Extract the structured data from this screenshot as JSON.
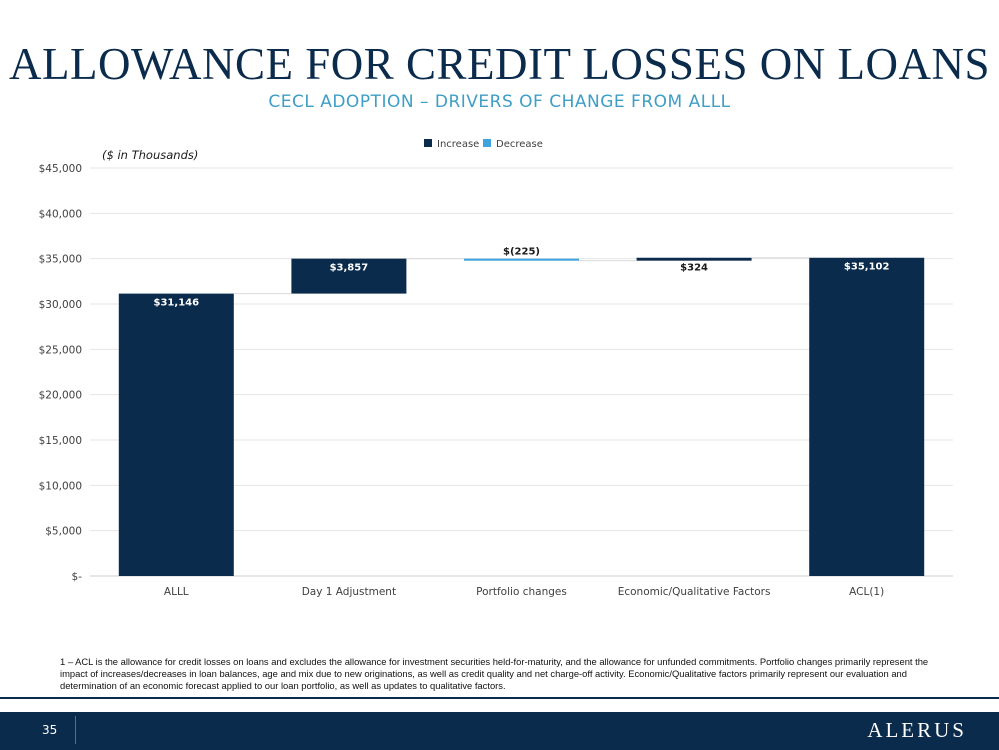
{
  "slide": {
    "title": "ALLOWANCE FOR CREDIT LOSSES ON LOANS",
    "subtitle": "CECL ADOPTION – DRIVERS OF CHANGE FROM ALLL",
    "footnote": "1 – ACL is the allowance for credit losses on loans and excludes the allowance for investment securities held-for-maturity, and the allowance for unfunded commitments. Portfolio changes primarily represent the impact of increases/decreases in loan balances, age and mix due to new originations, as well as credit quality and net charge-off activity. Economic/Qualitative factors primarily represent our evaluation and determination of an economic forecast applied to our loan portfolio, as well as updates to qualitative factors.",
    "page_number": "35",
    "logo_text": "ALERUS"
  },
  "chart_data": {
    "type": "bar",
    "subtype": "waterfall",
    "unit_note": "($ in Thousands)",
    "categories": [
      "ALLL",
      "Day 1 Adjustment",
      "Portfolio changes",
      "Economic/Qualitative Factors",
      "ACL(1)"
    ],
    "values": [
      31146,
      3857,
      -225,
      324,
      35102
    ],
    "bar_kinds": [
      "total",
      "increase",
      "decrease",
      "increase",
      "total"
    ],
    "data_labels": [
      "$31,146",
      "$3,857",
      "$(225)",
      "$324",
      "$35,102"
    ],
    "legend": [
      {
        "name": "Increase",
        "color": "#0b2b4c"
      },
      {
        "name": "Decrease",
        "color": "#3fa3e0"
      }
    ],
    "legend_position": "top",
    "ylim": [
      0,
      45000
    ],
    "yticks": [
      0,
      5000,
      10000,
      15000,
      20000,
      25000,
      30000,
      35000,
      40000,
      45000
    ],
    "ytick_labels": [
      "$-",
      "$5,000",
      "$10,000",
      "$15,000",
      "$20,000",
      "$25,000",
      "$30,000",
      "$35,000",
      "$40,000",
      "$45,000"
    ],
    "grid": true,
    "colors": {
      "increase": "#0b2b4c",
      "decrease": "#3fa3e0",
      "grid": "#e6e6e6",
      "connector": "#d9d9d9"
    }
  }
}
